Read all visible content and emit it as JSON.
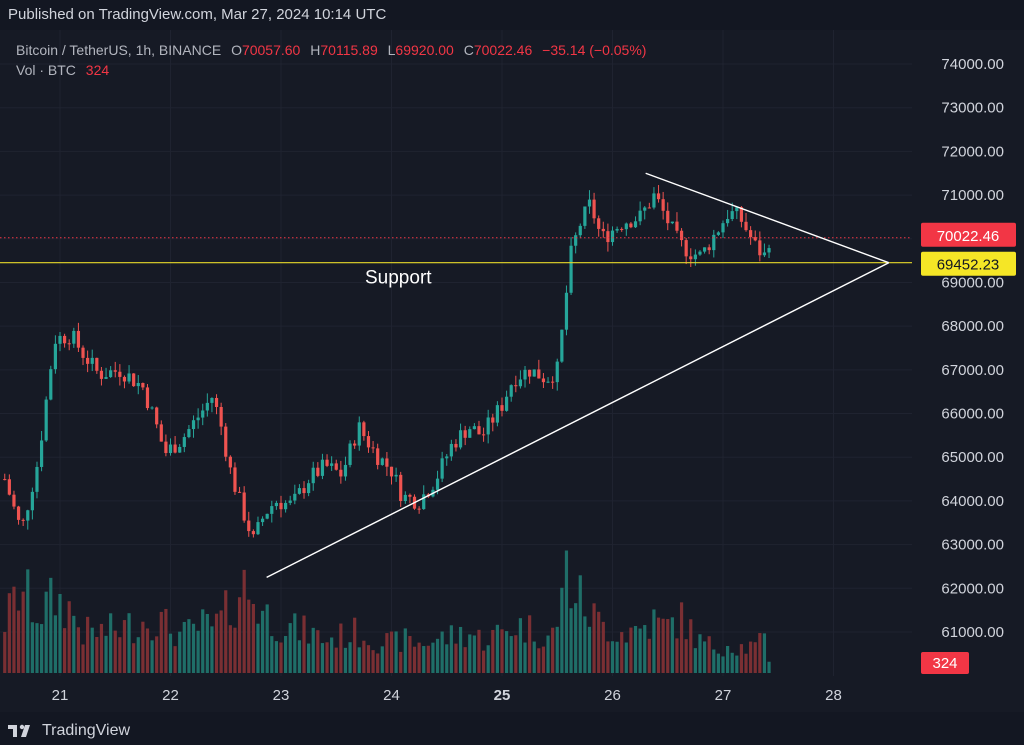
{
  "header": {
    "published_text": "Published on TradingView.com, Mar 27, 2024 10:14 UTC"
  },
  "legend": {
    "symbol": "Bitcoin / TetherUS, 1h, BINANCE",
    "o_label": "O",
    "o_value": "70057.60",
    "h_label": "H",
    "h_value": "70115.89",
    "l_label": "L",
    "l_value": "69920.00",
    "c_label": "C",
    "c_value": "70022.46",
    "change": "−35.14 (−0.05%)",
    "vol_label": "Vol · BTC",
    "vol_value": "324"
  },
  "footer": {
    "brand": "TradingView",
    "logo_icon": "tradingview-logo-icon"
  },
  "colors": {
    "up": "#26a69a",
    "down": "#ef5350",
    "up_vol": "#1f6e68",
    "down_vol": "#7a2f33",
    "support": "#e6d82a",
    "trendline": "#ffffff",
    "price_badge": "#f23645",
    "support_badge": "#f5e626"
  },
  "chart_data": {
    "type": "candlestick",
    "symbol": "Bitcoin / TetherUS",
    "interval": "1h",
    "exchange": "BINANCE",
    "y_axis_side": "right",
    "ylim": [
      60000,
      74500
    ],
    "yticks": [
      "74000.00",
      "73000.00",
      "72000.00",
      "71000.00",
      "70000.00",
      "69000.00",
      "68000.00",
      "67000.00",
      "66000.00",
      "65000.00",
      "64000.00",
      "63000.00",
      "62000.00",
      "61000.00"
    ],
    "xticks": [
      "21",
      "22",
      "23",
      "24",
      "25",
      "26",
      "27",
      "28"
    ],
    "xlim_days": [
      20.5,
      28.85
    ],
    "last_price": 70022.46,
    "last_price_label": "70022.46",
    "support_level": 69452.23,
    "support_level_label": "69452.23",
    "support_text": "Support",
    "last_volume_label": "324",
    "trendlines": [
      {
        "name": "lower",
        "from": {
          "day": 22.87,
          "price": 62250
        },
        "to": {
          "day": 28.5,
          "price": 69452
        }
      },
      {
        "name": "upper",
        "from": {
          "day": 26.3,
          "price": 71500
        },
        "to": {
          "day": 28.5,
          "price": 69452
        }
      }
    ],
    "anchors": [
      [
        20.5,
        64500,
        140
      ],
      [
        20.65,
        63300,
        230
      ],
      [
        20.8,
        64900,
        160
      ],
      [
        20.95,
        67700,
        200
      ],
      [
        21.1,
        67800,
        170
      ],
      [
        21.2,
        67400,
        110
      ],
      [
        21.35,
        66900,
        110
      ],
      [
        21.55,
        67000,
        120
      ],
      [
        21.75,
        66600,
        140
      ],
      [
        21.85,
        65900,
        150
      ],
      [
        21.95,
        65100,
        130
      ],
      [
        22.1,
        65400,
        100
      ],
      [
        22.3,
        66100,
        130
      ],
      [
        22.38,
        66400,
        120
      ],
      [
        22.45,
        65800,
        140
      ],
      [
        22.55,
        64600,
        180
      ],
      [
        22.65,
        63800,
        240
      ],
      [
        22.75,
        63100,
        200
      ],
      [
        22.85,
        63700,
        160
      ],
      [
        22.95,
        64000,
        140
      ],
      [
        23.1,
        63900,
        120
      ],
      [
        23.25,
        64500,
        110
      ],
      [
        23.4,
        64800,
        90
      ],
      [
        23.55,
        64600,
        100
      ],
      [
        23.7,
        65700,
        110
      ],
      [
        23.85,
        65100,
        90
      ],
      [
        24.0,
        64700,
        80
      ],
      [
        24.1,
        64100,
        90
      ],
      [
        24.25,
        64000,
        80
      ],
      [
        24.4,
        64500,
        90
      ],
      [
        24.55,
        65300,
        100
      ],
      [
        24.7,
        65700,
        110
      ],
      [
        24.82,
        65500,
        90
      ],
      [
        25.0,
        66200,
        110
      ],
      [
        25.1,
        66800,
        130
      ],
      [
        25.25,
        67000,
        120
      ],
      [
        25.4,
        66800,
        100
      ],
      [
        25.5,
        67000,
        110
      ],
      [
        25.55,
        68000,
        300
      ],
      [
        25.62,
        69600,
        240
      ],
      [
        25.7,
        70300,
        200
      ],
      [
        25.8,
        70800,
        160
      ],
      [
        25.9,
        70000,
        130
      ],
      [
        26.1,
        70400,
        110
      ],
      [
        26.25,
        70500,
        120
      ],
      [
        26.38,
        71000,
        140
      ],
      [
        26.48,
        70500,
        120
      ],
      [
        26.6,
        69900,
        150
      ],
      [
        26.7,
        69700,
        120
      ],
      [
        26.8,
        69600,
        80
      ],
      [
        26.95,
        70200,
        70
      ],
      [
        27.05,
        70600,
        80
      ],
      [
        27.15,
        70500,
        70
      ],
      [
        27.3,
        69800,
        70
      ],
      [
        27.38,
        69600,
        90
      ],
      [
        27.42,
        70022,
        30
      ]
    ]
  }
}
